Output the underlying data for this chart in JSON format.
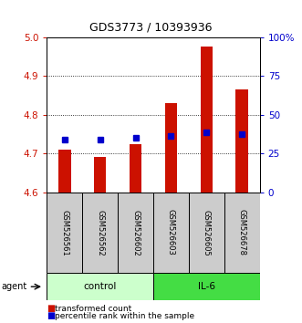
{
  "title": "GDS3773 / 10393936",
  "samples": [
    "GSM526561",
    "GSM526562",
    "GSM526602",
    "GSM526603",
    "GSM526605",
    "GSM526678"
  ],
  "groups": [
    "control",
    "control",
    "control",
    "IL-6",
    "IL-6",
    "IL-6"
  ],
  "red_values": [
    4.71,
    4.69,
    4.725,
    4.83,
    4.975,
    4.865
  ],
  "blue_values": [
    4.735,
    4.735,
    4.74,
    4.745,
    4.755,
    4.75
  ],
  "y_min": 4.6,
  "y_max": 5.0,
  "y_ticks": [
    4.6,
    4.7,
    4.8,
    4.9,
    5.0
  ],
  "right_y_ticks": [
    0,
    25,
    50,
    75,
    100
  ],
  "right_y_labels": [
    "0",
    "25",
    "50",
    "75",
    "100%"
  ],
  "red_color": "#cc1100",
  "blue_color": "#0000cc",
  "control_color": "#ccffcc",
  "il6_color": "#44dd44",
  "bar_bg": "#cccccc",
  "grid_color": "#000000",
  "title_fontsize": 9,
  "tick_fontsize": 7.5,
  "sample_fontsize": 6,
  "group_fontsize": 7.5,
  "legend_fontsize": 6.5
}
